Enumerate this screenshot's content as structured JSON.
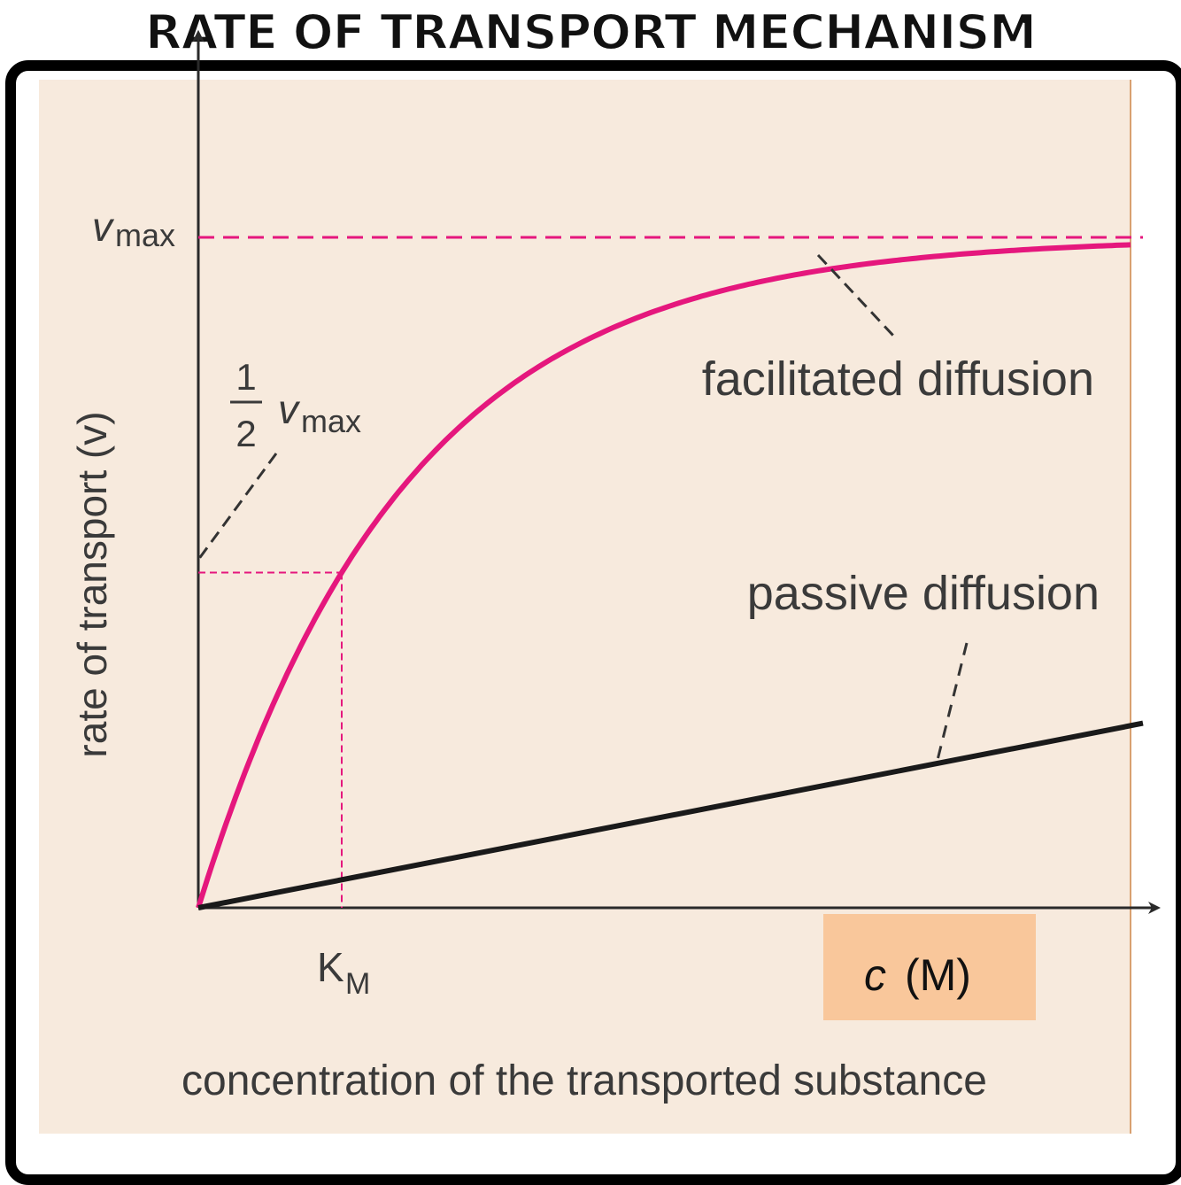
{
  "title": "RATE OF TRANSPORT MECHANISM",
  "chart_data": {
    "type": "line",
    "title": "RATE OF TRANSPORT MECHANISM",
    "xlabel": "concentration of the transported substance",
    "x_unit_label": {
      "variable": "c",
      "unit": "(M)",
      "highlight_color": "#f9c79b"
    },
    "ylabel": "rate of transport (v)",
    "y_ticks": [
      {
        "label": "v",
        "subscript": "max",
        "value": 1.0
      },
      {
        "label_num": "1",
        "label_den": "2",
        "label": "v",
        "subscript": "max",
        "value": 0.5
      }
    ],
    "x_ticks": [
      {
        "label": "K",
        "subscript": "M",
        "value": 1.0
      }
    ],
    "km": 1.0,
    "vmax": 1.0,
    "xlim": [
      0,
      6.5
    ],
    "ylim": [
      0,
      1.32
    ],
    "series": [
      {
        "name": "facilitated diffusion",
        "model": "saturation",
        "color": "#e5177d",
        "x": [
          0,
          0.25,
          0.5,
          0.75,
          1.0,
          1.5,
          2.0,
          2.5,
          3.0,
          3.5,
          4.0,
          4.5,
          5.0,
          5.5,
          6.0,
          6.5
        ],
        "y": [
          0,
          0.159,
          0.293,
          0.405,
          0.5,
          0.646,
          0.75,
          0.823,
          0.875,
          0.912,
          0.937,
          0.956,
          0.969,
          0.978,
          0.984,
          0.989
        ]
      },
      {
        "name": "passive diffusion",
        "model": "linear",
        "color": "#1a1a1a",
        "x": [
          0,
          6.5
        ],
        "y": [
          0,
          0.27
        ]
      }
    ],
    "colors": {
      "vmax_dashes": "#e5177d",
      "guide_dashes": "#e5177d",
      "axes": "#2a2a2a",
      "background": "#f7eadd"
    },
    "grid": false,
    "legend": "none"
  }
}
